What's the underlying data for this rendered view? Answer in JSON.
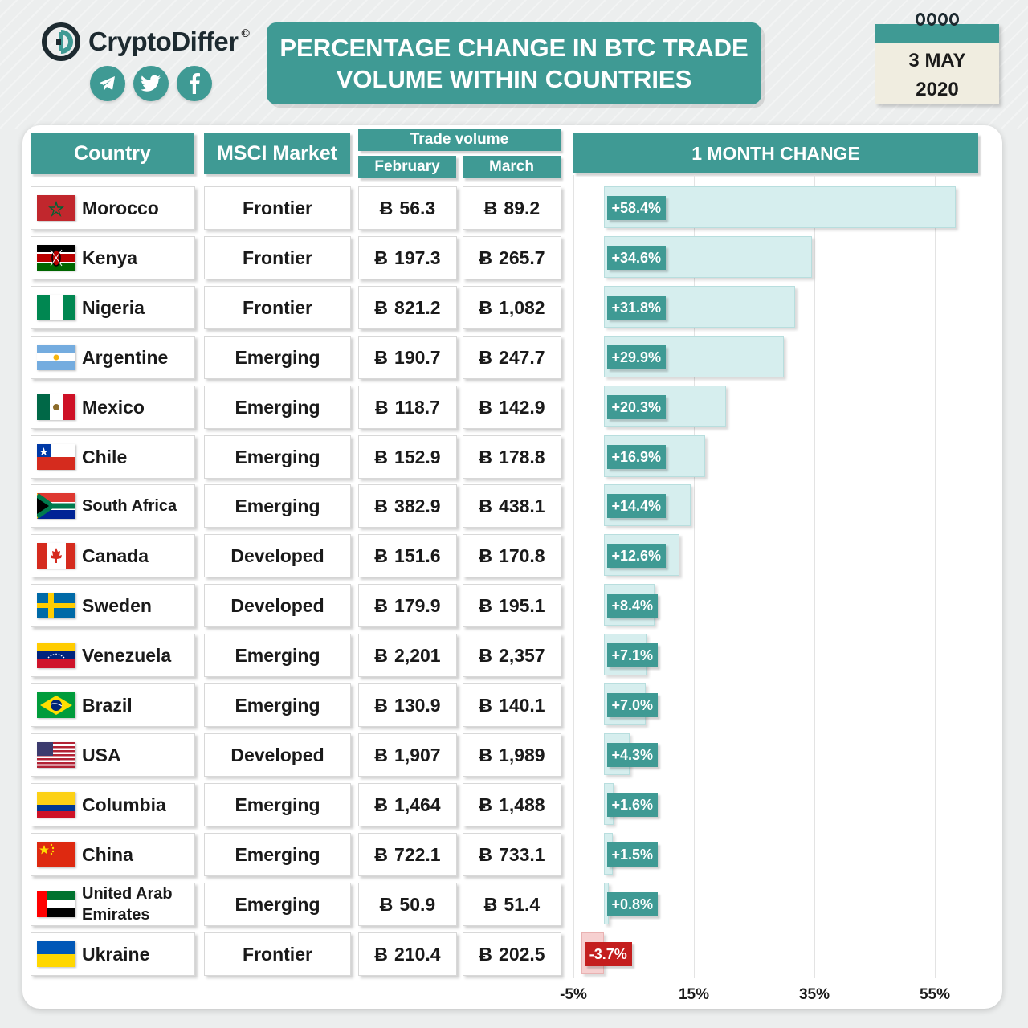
{
  "brand": {
    "part1": "Crypto",
    "part2": "Differ",
    "mark": "©"
  },
  "socials": [
    "telegram-icon",
    "twitter-icon",
    "facebook-icon"
  ],
  "title": {
    "line1": "PERCENTAGE CHANGE IN BTC TRADE",
    "line2": "VOLUME WITHIN COUNTRIES"
  },
  "date": {
    "day": "3 MAY",
    "year": "2020"
  },
  "headers": {
    "country": "Country",
    "market": "MSCI Market",
    "trade_volume": "Trade volume",
    "feb": "February",
    "mar": "March",
    "change": "1 MONTH CHANGE"
  },
  "currency_symbol": "Ƀ",
  "colors": {
    "accent": "#3f9a94",
    "bar": "#d6eeee",
    "negative": "#c41e1e"
  },
  "rows": [
    {
      "country": "Morocco",
      "flag": "morocco",
      "market": "Frontier",
      "feb": "56.3",
      "mar": "89.2",
      "change_label": "+58.4%"
    },
    {
      "country": "Kenya",
      "flag": "kenya",
      "market": "Frontier",
      "feb": "197.3",
      "mar": "265.7",
      "change_label": "+34.6%"
    },
    {
      "country": "Nigeria",
      "flag": "nigeria",
      "market": "Frontier",
      "feb": "821.2",
      "mar": "1,082",
      "change_label": "+31.8%"
    },
    {
      "country": "Argentine",
      "flag": "argentina",
      "market": "Emerging",
      "feb": "190.7",
      "mar": "247.7",
      "change_label": "+29.9%"
    },
    {
      "country": "Mexico",
      "flag": "mexico",
      "market": "Emerging",
      "feb": "118.7",
      "mar": "142.9",
      "change_label": "+20.3%"
    },
    {
      "country": "Chile",
      "flag": "chile",
      "market": "Emerging",
      "feb": "152.9",
      "mar": "178.8",
      "change_label": "+16.9%"
    },
    {
      "country": "South Africa",
      "flag": "south-africa",
      "market": "Emerging",
      "feb": "382.9",
      "mar": "438.1",
      "change_label": "+14.4%"
    },
    {
      "country": "Canada",
      "flag": "canada",
      "market": "Developed",
      "feb": "151.6",
      "mar": "170.8",
      "change_label": "+12.6%"
    },
    {
      "country": "Sweden",
      "flag": "sweden",
      "market": "Developed",
      "feb": "179.9",
      "mar": "195.1",
      "change_label": "+8.4%"
    },
    {
      "country": "Venezuela",
      "flag": "venezuela",
      "market": "Emerging",
      "feb": "2,201",
      "mar": "2,357",
      "change_label": "+7.1%"
    },
    {
      "country": "Brazil",
      "flag": "brazil",
      "market": "Emerging",
      "feb": "130.9",
      "mar": "140.1",
      "change_label": "+7.0%"
    },
    {
      "country": "USA",
      "flag": "usa",
      "market": "Developed",
      "feb": "1,907",
      "mar": "1,989",
      "change_label": "+4.3%"
    },
    {
      "country": "Columbia",
      "flag": "colombia",
      "market": "Emerging",
      "feb": "1,464",
      "mar": "1,488",
      "change_label": "+1.6%"
    },
    {
      "country": "China",
      "flag": "china",
      "market": "Emerging",
      "feb": "722.1",
      "mar": "733.1",
      "change_label": "+1.5%"
    },
    {
      "country_line1": "United Arab",
      "country_line2": "Emirates",
      "flag": "uae",
      "market": "Emerging",
      "feb": "50.9",
      "mar": "51.4",
      "change_label": "+0.8%"
    },
    {
      "country": "Ukraine",
      "flag": "ukraine",
      "market": "Frontier",
      "feb": "210.4",
      "mar": "202.5",
      "change_label": "-3.7%"
    }
  ],
  "chart_data": {
    "type": "bar",
    "orientation": "horizontal",
    "title": "1 MONTH CHANGE",
    "categories": [
      "Morocco",
      "Kenya",
      "Nigeria",
      "Argentine",
      "Mexico",
      "Chile",
      "South Africa",
      "Canada",
      "Sweden",
      "Venezuela",
      "Brazil",
      "USA",
      "Columbia",
      "China",
      "United Arab Emirates",
      "Ukraine"
    ],
    "values": [
      58.4,
      34.6,
      31.8,
      29.9,
      20.3,
      16.9,
      14.4,
      12.6,
      8.4,
      7.1,
      7.0,
      4.3,
      1.6,
      1.5,
      0.8,
      -3.7
    ],
    "value_labels": [
      "+58.4%",
      "+34.6%",
      "+31.8%",
      "+29.9%",
      "+20.3%",
      "+16.9%",
      "+14.4%",
      "+12.6%",
      "+8.4%",
      "+7.1%",
      "+7.0%",
      "+4.3%",
      "+1.6%",
      "+1.5%",
      "+0.8%",
      "-3.7%"
    ],
    "xticks": [
      -5,
      15,
      35,
      55
    ],
    "xtick_labels": [
      "-5%",
      "15%",
      "35%",
      "55%"
    ],
    "xlim": [
      -5,
      60
    ],
    "grid": true
  }
}
